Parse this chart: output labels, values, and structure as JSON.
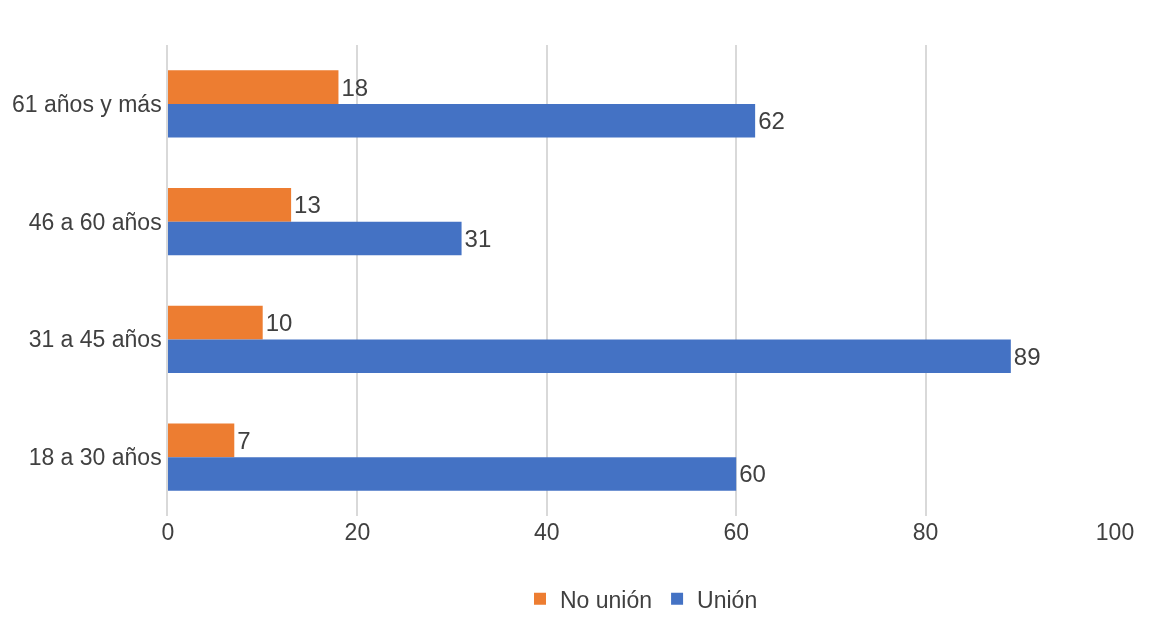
{
  "chart_data": {
    "type": "bar",
    "orientation": "horizontal",
    "categories": [
      "61 años y más",
      "46 a 60 años",
      "31 a 45 años",
      "18 a 30 años"
    ],
    "series": [
      {
        "name": "No unión",
        "color": "#ed7d31",
        "values": [
          18,
          13,
          10,
          7
        ]
      },
      {
        "name": "Unión",
        "color": "#4472c4",
        "values": [
          62,
          31,
          89,
          60
        ]
      }
    ],
    "xlim": [
      0,
      100
    ],
    "xticks": [
      0,
      20,
      40,
      60,
      80,
      100
    ],
    "grid": "x",
    "legend": "bottom",
    "data_labels": true
  }
}
